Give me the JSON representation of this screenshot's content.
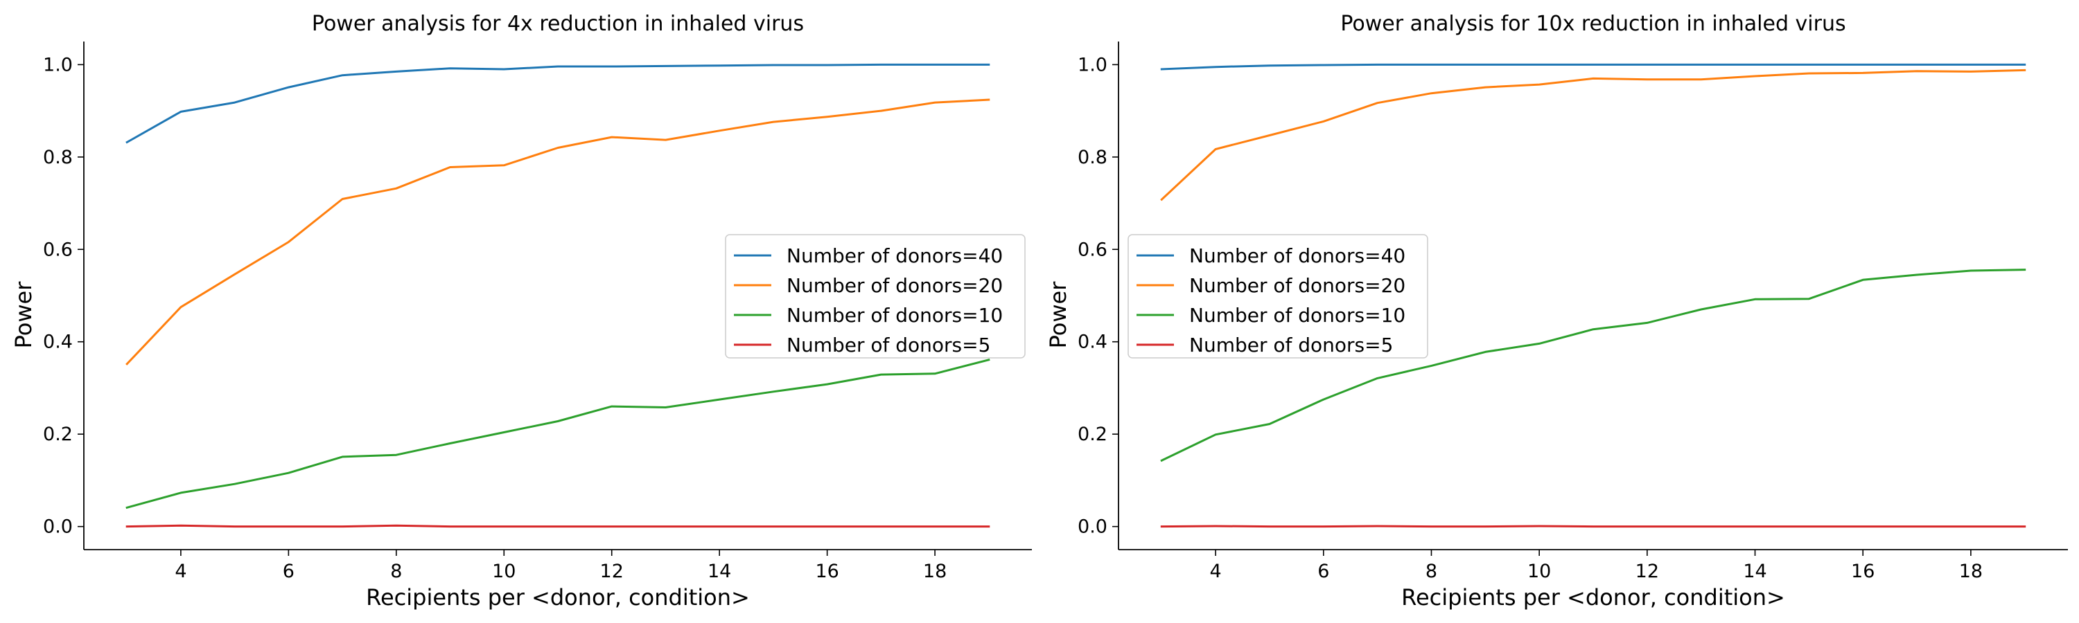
{
  "figure": {
    "colors": {
      "donors_40": "#1f77b4",
      "donors_20": "#ff7f0e",
      "donors_10": "#2ca02c",
      "donors_5": "#d62728"
    }
  },
  "chart_data": [
    {
      "type": "line",
      "title": "Power analysis for 4x reduction in inhaled virus",
      "xlabel": "Recipients per <donor, condition>",
      "ylabel": "Power",
      "xlim": [
        2.2,
        19.8
      ],
      "ylim": [
        -0.05,
        1.05
      ],
      "xticks": [
        4,
        6,
        8,
        10,
        12,
        14,
        16,
        18
      ],
      "yticks": [
        0.0,
        0.2,
        0.4,
        0.6,
        0.8,
        1.0
      ],
      "tick_format": {
        "x": 0,
        "y": 1
      },
      "grid": false,
      "legend_placement": "center-right",
      "x": [
        3,
        4,
        5,
        6,
        7,
        8,
        9,
        10,
        11,
        12,
        13,
        14,
        15,
        16,
        17,
        18,
        19
      ],
      "series": [
        {
          "name": "Number of donors=40",
          "color": "#1f77b4",
          "values": [
            0.832,
            0.898,
            0.918,
            0.951,
            0.977,
            0.985,
            0.992,
            0.99,
            0.996,
            0.996,
            0.997,
            0.998,
            0.999,
            0.999,
            1.0,
            1.0,
            1.0
          ]
        },
        {
          "name": "Number of donors=20",
          "color": "#ff7f0e",
          "values": [
            0.352,
            0.475,
            0.546,
            0.616,
            0.709,
            0.732,
            0.778,
            0.782,
            0.82,
            0.843,
            0.837,
            0.857,
            0.876,
            0.887,
            0.9,
            0.918,
            0.924
          ]
        },
        {
          "name": "Number of donors=10",
          "color": "#2ca02c",
          "values": [
            0.041,
            0.073,
            0.092,
            0.116,
            0.151,
            0.155,
            0.18,
            0.204,
            0.228,
            0.26,
            0.258,
            0.275,
            0.292,
            0.308,
            0.329,
            0.331,
            0.361
          ]
        },
        {
          "name": "Number of donors=5",
          "color": "#d62728",
          "values": [
            0.0,
            0.002,
            0.0,
            0.0,
            0.0,
            0.002,
            0.0,
            0.0,
            0.0,
            0.0,
            0.0,
            0.0,
            0.0,
            0.0,
            0.0,
            0.0,
            0.0
          ]
        }
      ]
    },
    {
      "type": "line",
      "title": "Power analysis for 10x reduction in inhaled virus",
      "xlabel": "Recipients per <donor, condition>",
      "ylabel": "Power",
      "xlim": [
        2.2,
        19.8
      ],
      "ylim": [
        -0.05,
        1.05
      ],
      "xticks": [
        4,
        6,
        8,
        10,
        12,
        14,
        16,
        18
      ],
      "yticks": [
        0.0,
        0.2,
        0.4,
        0.6,
        0.8,
        1.0
      ],
      "tick_format": {
        "x": 0,
        "y": 1
      },
      "grid": false,
      "legend_placement": "center-left",
      "x": [
        3,
        4,
        5,
        6,
        7,
        8,
        9,
        10,
        11,
        12,
        13,
        14,
        15,
        16,
        17,
        18,
        19
      ],
      "series": [
        {
          "name": "Number of donors=40",
          "color": "#1f77b4",
          "values": [
            0.99,
            0.995,
            0.998,
            0.999,
            1.0,
            1.0,
            1.0,
            1.0,
            1.0,
            1.0,
            1.0,
            1.0,
            1.0,
            1.0,
            1.0,
            1.0,
            1.0
          ]
        },
        {
          "name": "Number of donors=20",
          "color": "#ff7f0e",
          "values": [
            0.708,
            0.817,
            0.847,
            0.877,
            0.917,
            0.938,
            0.951,
            0.957,
            0.97,
            0.968,
            0.968,
            0.975,
            0.981,
            0.982,
            0.986,
            0.985,
            0.988
          ]
        },
        {
          "name": "Number of donors=10",
          "color": "#2ca02c",
          "values": [
            0.143,
            0.199,
            0.222,
            0.275,
            0.321,
            0.348,
            0.378,
            0.396,
            0.427,
            0.441,
            0.47,
            0.492,
            0.493,
            0.534,
            0.545,
            0.554,
            0.556
          ]
        },
        {
          "name": "Number of donors=5",
          "color": "#d62728",
          "values": [
            0.0,
            0.001,
            0.0,
            0.0,
            0.001,
            0.0,
            0.0,
            0.001,
            0.0,
            0.0,
            0.0,
            0.0,
            0.0,
            0.0,
            0.0,
            0.0,
            0.0
          ]
        }
      ]
    }
  ]
}
